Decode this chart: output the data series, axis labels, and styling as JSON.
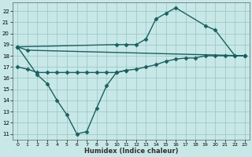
{
  "xlabel": "Humidex (Indice chaleur)",
  "xlim": [
    -0.5,
    23.5
  ],
  "ylim": [
    10.5,
    22.8
  ],
  "xticks": [
    0,
    1,
    2,
    3,
    4,
    5,
    6,
    7,
    8,
    9,
    10,
    11,
    12,
    13,
    14,
    15,
    16,
    17,
    18,
    19,
    20,
    21,
    22,
    23
  ],
  "yticks": [
    11,
    12,
    13,
    14,
    15,
    16,
    17,
    18,
    19,
    20,
    21,
    22
  ],
  "background_color": "#c8e8e8",
  "grid_color": "#a0c8c8",
  "line_color": "#1a6060",
  "line_width": 1.0,
  "marker": "D",
  "marker_size": 2.5,
  "curve1_x": [
    0,
    1,
    23
  ],
  "curve1_y": [
    18.8,
    18.5,
    18.0
  ],
  "curve2_x": [
    0,
    2,
    3,
    4,
    5,
    6,
    7,
    8,
    9,
    10,
    11
  ],
  "curve2_y": [
    18.8,
    16.3,
    15.5,
    14.0,
    12.7,
    11.0,
    11.2,
    13.3,
    15.3,
    16.5,
    16.7
  ],
  "curve3_x": [
    0,
    10,
    11,
    12,
    13,
    14,
    15,
    16,
    19,
    20,
    22,
    23
  ],
  "curve3_y": [
    18.8,
    19.0,
    19.0,
    19.0,
    19.5,
    21.3,
    21.8,
    22.3,
    20.7,
    20.3,
    18.0,
    18.0
  ],
  "curve4_x": [
    0,
    1,
    2,
    3,
    4,
    5,
    6,
    7,
    8,
    9,
    10,
    11,
    12,
    13,
    14,
    15,
    16,
    17,
    18,
    19,
    20,
    21,
    22,
    23
  ],
  "curve4_y": [
    17.0,
    16.8,
    16.5,
    16.5,
    16.5,
    16.5,
    16.5,
    16.5,
    16.5,
    16.5,
    16.5,
    16.7,
    16.8,
    17.0,
    17.2,
    17.5,
    17.7,
    17.8,
    17.8,
    18.0,
    18.0,
    18.0,
    18.0,
    18.0
  ]
}
